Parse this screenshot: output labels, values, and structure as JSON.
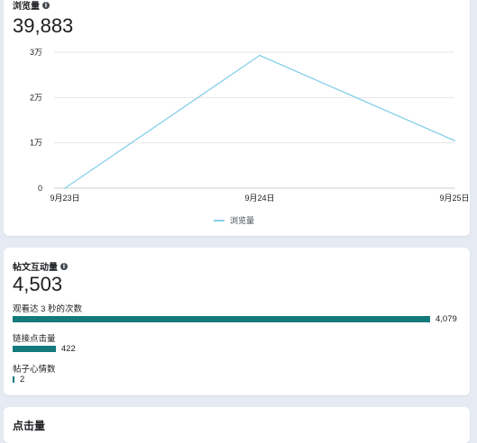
{
  "views_card": {
    "title": "浏览量",
    "total": "39,883",
    "legend_label": "浏览量",
    "line_color": "#87cfe9"
  },
  "chart_data": {
    "type": "line",
    "categories": [
      "9月23日",
      "9月24日",
      "9月25日"
    ],
    "series": [
      {
        "name": "浏览量",
        "values": [
          0,
          29300,
          10500
        ]
      }
    ],
    "y_ticks": [
      {
        "value": 0,
        "label": "0"
      },
      {
        "value": 10000,
        "label": "1万"
      },
      {
        "value": 20000,
        "label": "2万"
      },
      {
        "value": 30000,
        "label": "3万"
      }
    ],
    "ylim": [
      0,
      30000
    ],
    "grid": true,
    "legend_position": "bottom-center"
  },
  "engagement_card": {
    "title": "帖文互动量",
    "total": "4,503",
    "bar_color": "#147a7b",
    "metrics": [
      {
        "label": "观看达 3 秒的次数",
        "value": "4,079",
        "amount": 4079
      },
      {
        "label": "链接点击量",
        "value": "422",
        "amount": 422
      },
      {
        "label": "帖子心情数",
        "value": "2",
        "amount": 2
      }
    ]
  },
  "clicks_card": {
    "title": "点击量"
  }
}
